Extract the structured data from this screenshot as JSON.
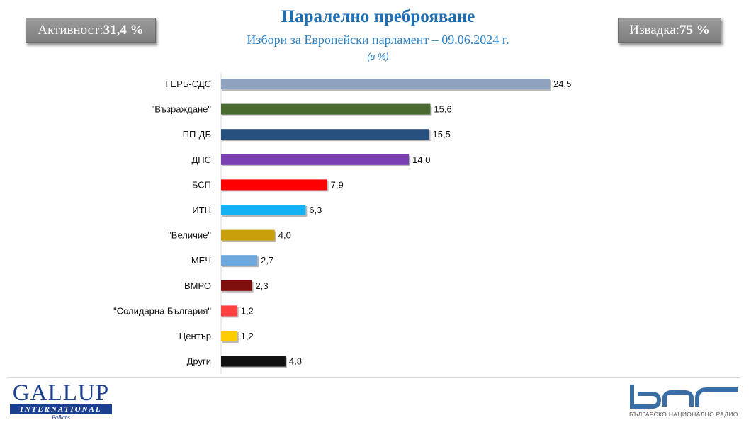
{
  "header": {
    "turnout_label": "Активност:",
    "turnout_value": "31,4 %",
    "sample_label": "Извадка:",
    "sample_value": "75 %",
    "title": "Паралелно преброяване",
    "subtitle": "Избори за Европейски парламент – 09.06.2024 г.",
    "unit": "(в %)"
  },
  "chart_data": {
    "type": "bar",
    "orientation": "horizontal",
    "categories": [
      "ГЕРБ-СДС",
      "\"Възраждане\"",
      "ПП-ДБ",
      "ДПС",
      "БСП",
      "ИТН",
      "\"Величие\"",
      "МЕЧ",
      "ВМРО",
      "\"Солидарна България\"",
      "Център",
      "Други"
    ],
    "values": [
      24.5,
      15.6,
      15.5,
      14.0,
      7.9,
      6.3,
      4.0,
      2.7,
      2.3,
      1.2,
      1.2,
      4.8
    ],
    "value_labels": [
      "24,5",
      "15,6",
      "15,5",
      "14,0",
      "7,9",
      "6,3",
      "4,0",
      "2,7",
      "2,3",
      "1,2",
      "1,2",
      "4,8"
    ],
    "colors": [
      "#8fa3be",
      "#4a6b2f",
      "#27507f",
      "#7a3fb0",
      "#ff0000",
      "#13b3f3",
      "#c9a00c",
      "#6fa8dc",
      "#7f0f0f",
      "#ff4040",
      "#ffcc00",
      "#111111"
    ],
    "xlim": [
      0,
      24.5
    ],
    "grid": false,
    "legend": "none"
  },
  "footer": {
    "gallup_word": "GALLUP",
    "gallup_bar": "INTERNATIONAL",
    "gallup_sub": "Balkans",
    "bnr_caption": "БЪЛГАРСКО НАЦИОНАЛНО РАДИО"
  },
  "colors": {
    "title": "#1f6fb4",
    "subtitle": "#2a82c9",
    "badge": "#8c8c8c",
    "gallup_blue": "#1b3f8f",
    "bnr_blue": "#3a6ea5"
  }
}
